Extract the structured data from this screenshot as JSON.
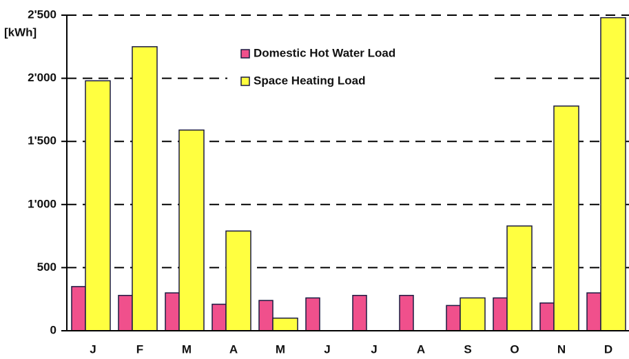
{
  "chart_data": {
    "type": "bar",
    "y_label": "[kWh]",
    "categories": [
      "J",
      "F",
      "M",
      "A",
      "M",
      "J",
      "J",
      "A",
      "S",
      "O",
      "N",
      "D"
    ],
    "series": [
      {
        "name": "Domestic Hot Water Load",
        "color": "#f0508c",
        "values": [
          350,
          280,
          300,
          210,
          240,
          260,
          280,
          280,
          200,
          260,
          220,
          300
        ]
      },
      {
        "name": "Space Heating Load",
        "color": "#ffff40",
        "values": [
          1980,
          2250,
          1590,
          790,
          100,
          0,
          0,
          0,
          260,
          830,
          1780,
          2480
        ]
      }
    ],
    "ylim": [
      0,
      2500
    ],
    "yticks": [
      0,
      500,
      {
        "value": 1000,
        "label": "1'000"
      },
      {
        "value": 1500,
        "label": "1'500"
      },
      {
        "value": 2000,
        "label": "2'000"
      },
      {
        "value": 2500,
        "label": "2'500"
      }
    ],
    "grid": true,
    "legend": "top"
  }
}
